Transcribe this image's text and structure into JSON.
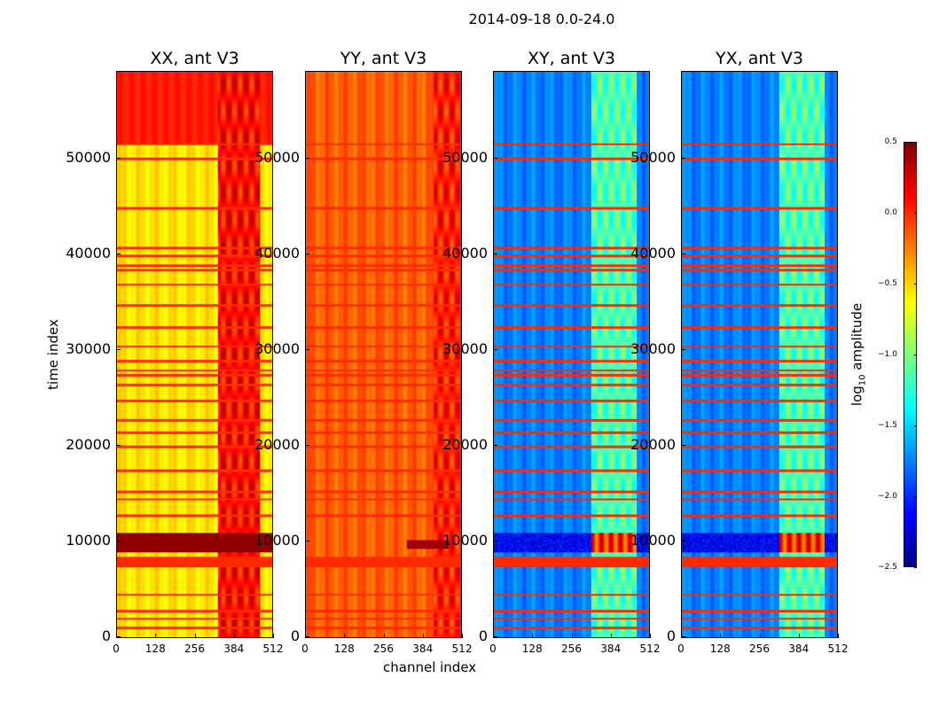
{
  "chart_data": {
    "type": "heatmap",
    "title": "2014-09-18 0.0-24.0",
    "xlabel": "channel index",
    "ylabel": "time index",
    "xlim": [
      0,
      512
    ],
    "ylim": [
      0,
      59250
    ],
    "xticks": [
      "0",
      "128",
      "256",
      "384",
      "512"
    ],
    "xtick_values": [
      0,
      128,
      256,
      384,
      512
    ],
    "yticks": [
      "0",
      "10000",
      "20000",
      "30000",
      "40000",
      "50000"
    ],
    "ytick_values": [
      0,
      10000,
      20000,
      30000,
      40000,
      50000
    ],
    "colorbar": {
      "label": "log10 amplitude",
      "label_main": "log",
      "label_sub": "10",
      "label_rest": " amplitude",
      "range": [
        -2.5,
        0.5
      ],
      "ticks": [
        "0.5",
        "0.0",
        "−0.5",
        "−1.0",
        "−1.5",
        "−2.0",
        "−2.5"
      ],
      "tick_values": [
        0.5,
        0.0,
        -0.5,
        -1.0,
        -1.5,
        -2.0,
        -2.5
      ],
      "colormap": "jet"
    },
    "flag_stripes_time": [
      1000,
      2000,
      2800,
      4500,
      12800,
      14500,
      15300,
      17500,
      20000,
      21500,
      22800,
      24800,
      26500,
      27500,
      28000,
      29000,
      30500,
      32500,
      34800,
      37000,
      38500,
      39000,
      40000,
      40800,
      45000,
      50200,
      51700
    ],
    "panels": [
      {
        "title": "XX, ant V3",
        "base": -0.55,
        "upper_block": {
          "from": 51700,
          "value": 0.05
        },
        "rfi_channels": [
          330,
          470
        ],
        "rfi_value": 0.1,
        "band": {
          "from": 8900,
          "to": 11000,
          "value": 0.45
        },
        "flag_band": {
          "from": 7400,
          "to": 8500,
          "value": 0.0
        },
        "stripe_value": 0.0
      },
      {
        "title": "YY, ant V3",
        "base": -0.15,
        "upper_block": null,
        "rfi_channels": [
          420,
          512
        ],
        "rfi_value": 0.05,
        "band": {
          "from": 9300,
          "to": 10200,
          "value": 0.4,
          "channels": [
            330,
            470
          ]
        },
        "flag_band": {
          "from": 7400,
          "to": 8500,
          "value": 0.0
        },
        "stripe_value": 0.0
      },
      {
        "title": "XY, ant V3",
        "base": -1.75,
        "upper_block": null,
        "rfi_channels": [
          320,
          470
        ],
        "rfi_value": -1.15,
        "band": {
          "from": 8900,
          "to": 11000,
          "value": -2.15
        },
        "flag_band": {
          "from": 7400,
          "to": 8500,
          "value": 0.0
        },
        "stripe_value": 0.0
      },
      {
        "title": "YX, ant V3",
        "base": -1.75,
        "upper_block": null,
        "rfi_channels": [
          320,
          470
        ],
        "rfi_value": -1.15,
        "band": {
          "from": 8900,
          "to": 11000,
          "value": -2.15
        },
        "flag_band": {
          "from": 7400,
          "to": 8500,
          "value": 0.0
        },
        "stripe_value": 0.0
      }
    ]
  }
}
